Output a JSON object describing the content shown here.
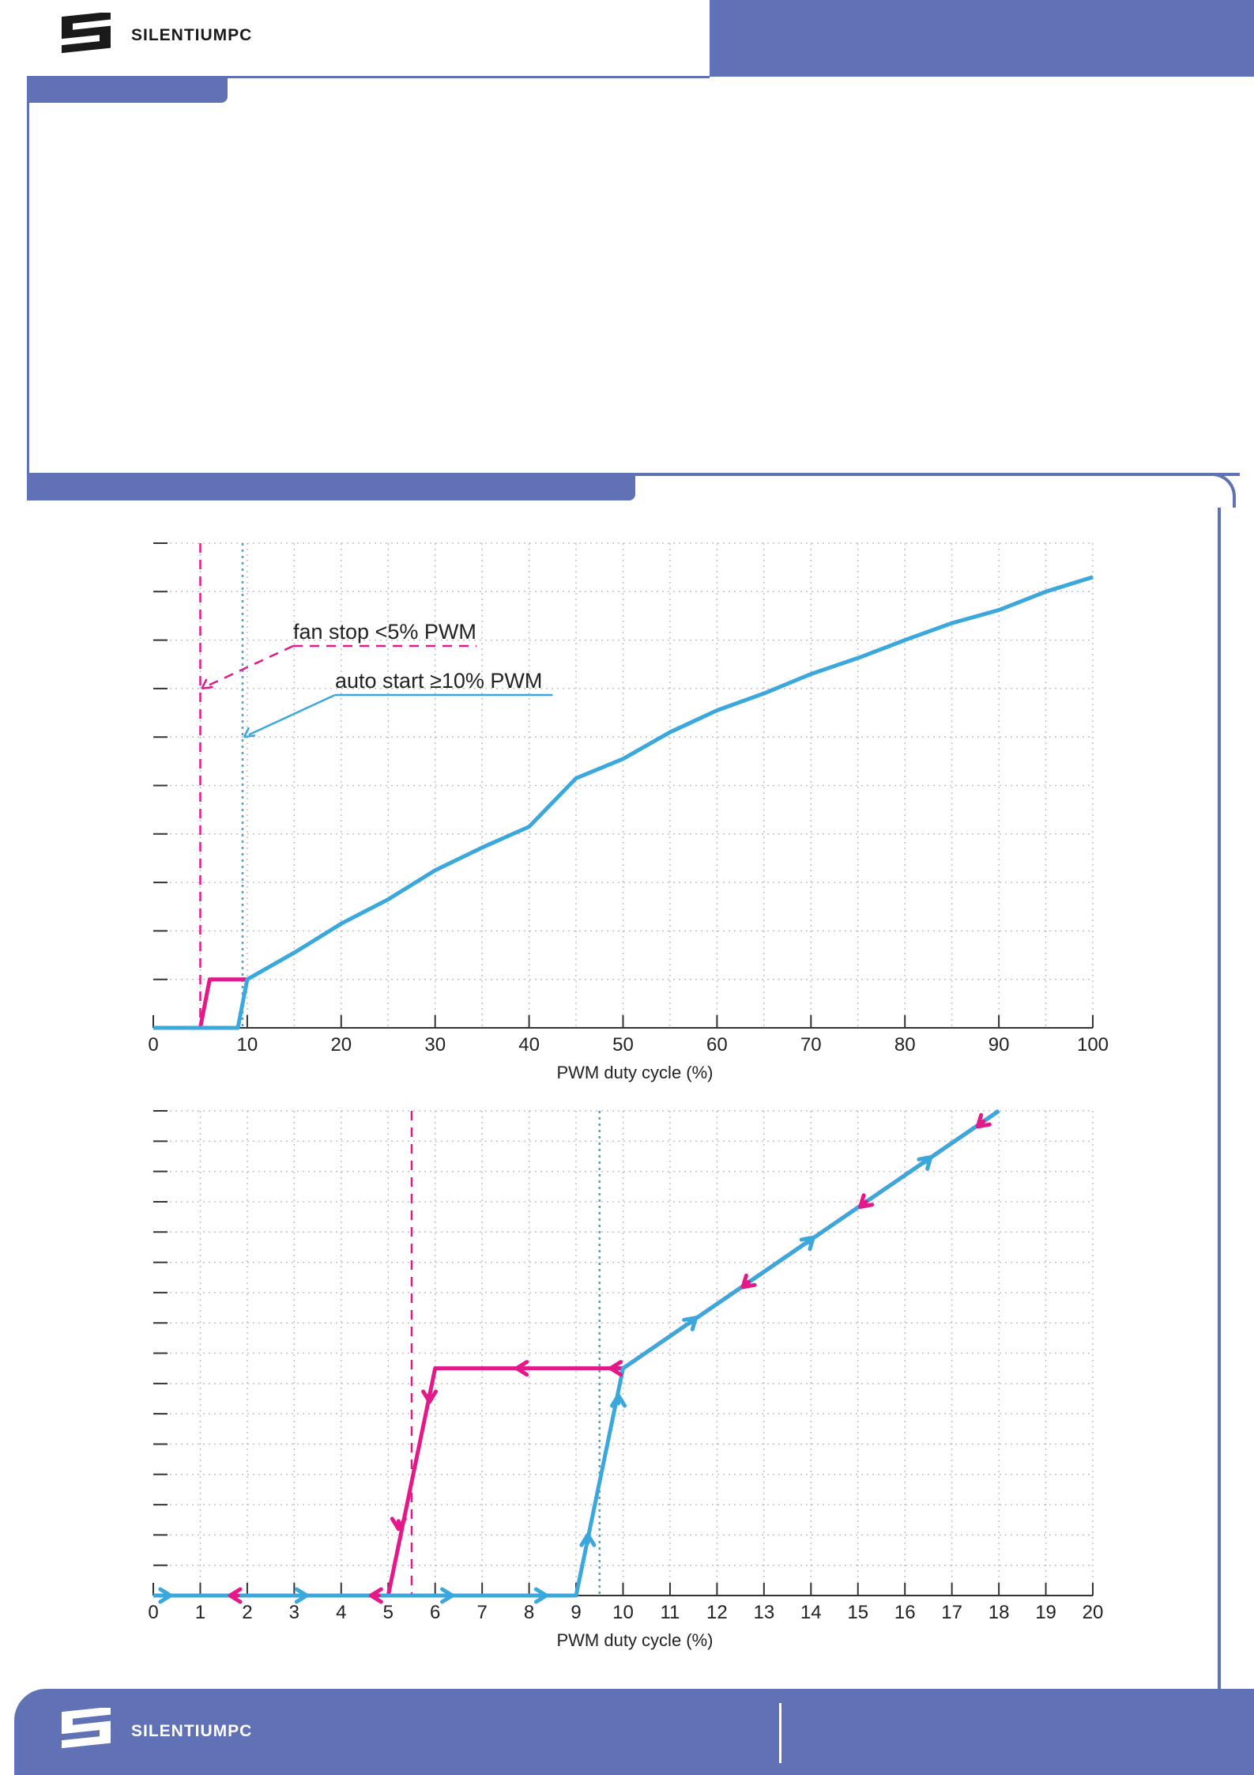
{
  "brand": {
    "name": "SILENTIUMPC",
    "primary_color": "#6171b5",
    "logo_dark": "#1a1a1a",
    "logo_light": "#ffffff"
  },
  "colors": {
    "pink": "#e3198a",
    "blue": "#3aa8dc",
    "grid": "#c2c2c2",
    "axis": "#333333"
  },
  "chart_data": [
    {
      "type": "line",
      "xlabel": "PWM duty cycle (%)",
      "ylabel": "",
      "xlim": [
        0,
        100
      ],
      "ylim": [
        0,
        100
      ],
      "xticks": [
        0,
        10,
        20,
        30,
        40,
        50,
        60,
        70,
        80,
        90,
        100
      ],
      "yticks": [
        0,
        10,
        20,
        30,
        40,
        50,
        60,
        70,
        80,
        90,
        100
      ],
      "vgrid": [
        5,
        10,
        15,
        20,
        25,
        30,
        35,
        40,
        45,
        50,
        55,
        60,
        65,
        70,
        75,
        80,
        85,
        90,
        95,
        100
      ],
      "grid": true,
      "series": [
        {
          "color": "pink",
          "x": [
            5,
            6,
            10
          ],
          "y": [
            0,
            10,
            10
          ]
        },
        {
          "color": "blue",
          "x": [
            0,
            9,
            10,
            15,
            20,
            25,
            30,
            35,
            40,
            45,
            50,
            55,
            60,
            65,
            70,
            75,
            80,
            85,
            90,
            95,
            100
          ],
          "y": [
            0,
            0,
            10,
            15.5,
            21.5,
            26.5,
            32.5,
            37.2,
            41.5,
            51.5,
            55.5,
            61,
            65.5,
            69,
            73,
            76.3,
            80,
            83.5,
            86.2,
            90,
            93
          ]
        }
      ],
      "markers": [
        {
          "x": 5,
          "color": "pink",
          "style": "dashed"
        },
        {
          "x": 9.5,
          "color": "blue",
          "style": "dotted"
        }
      ],
      "annotations": [
        {
          "text": "fan stop <5% PWM",
          "color": "pink",
          "points_to": [
            5,
            70
          ]
        },
        {
          "text": "auto start ≥10% PWM",
          "color": "blue",
          "points_to": [
            9.5,
            60
          ]
        }
      ]
    },
    {
      "type": "line",
      "xlabel": "PWM duty cycle (%)",
      "ylabel": "",
      "xlim": [
        0,
        20
      ],
      "ylim": [
        0,
        16
      ],
      "xticks": [
        0,
        1,
        2,
        3,
        4,
        5,
        6,
        7,
        8,
        9,
        10,
        11,
        12,
        13,
        14,
        15,
        16,
        17,
        18,
        19,
        20
      ],
      "yticks": [
        0,
        1,
        2,
        3,
        4,
        5,
        6,
        7,
        8,
        9,
        10,
        11,
        12,
        13,
        14,
        15,
        16
      ],
      "vgrid": [
        1,
        2,
        3,
        4,
        5,
        6,
        7,
        8,
        9,
        10,
        11,
        12,
        13,
        14,
        15,
        16,
        17,
        18,
        19,
        20
      ],
      "grid": true,
      "series": [
        {
          "color": "pink",
          "x": [
            5,
            6,
            10,
            18
          ],
          "y": [
            0,
            7.5,
            7.5,
            16
          ]
        },
        {
          "color": "blue",
          "x": [
            0,
            9,
            10,
            18
          ],
          "y": [
            0,
            0,
            7.5,
            16
          ]
        }
      ],
      "markers": [
        {
          "x": 5.5,
          "color": "pink",
          "style": "dashed"
        },
        {
          "x": 9.5,
          "color": "blue",
          "style": "dotted"
        }
      ],
      "arrows": [
        {
          "color": "blue",
          "x": 0.3,
          "y": 0,
          "dir": "right"
        },
        {
          "color": "pink",
          "x": 1.7,
          "y": 0,
          "dir": "left"
        },
        {
          "color": "blue",
          "x": 3.2,
          "y": 0,
          "dir": "right"
        },
        {
          "color": "pink",
          "x": 4.7,
          "y": 0,
          "dir": "left"
        },
        {
          "color": "blue",
          "x": 6.3,
          "y": 0,
          "dir": "right"
        },
        {
          "color": "blue",
          "x": 8.3,
          "y": 0,
          "dir": "right"
        },
        {
          "color": "pink",
          "x": 5.22,
          "y": 2.3,
          "dir": "down"
        },
        {
          "color": "pink",
          "x": 5.88,
          "y": 6.5,
          "dir": "down"
        },
        {
          "color": "blue",
          "x": 9.25,
          "y": 1.9,
          "dir": "up"
        },
        {
          "color": "blue",
          "x": 9.9,
          "y": 6.5,
          "dir": "up"
        },
        {
          "color": "pink",
          "x": 7.8,
          "y": 7.5,
          "dir": "left"
        },
        {
          "color": "pink",
          "x": 9.8,
          "y": 7.5,
          "dir": "left"
        },
        {
          "color": "blue",
          "x": 11.5,
          "y": 9.1,
          "dir": "upright"
        },
        {
          "color": "pink",
          "x": 12.6,
          "y": 10.25,
          "dir": "downleft"
        },
        {
          "color": "blue",
          "x": 14.0,
          "y": 11.75,
          "dir": "upright"
        },
        {
          "color": "pink",
          "x": 15.1,
          "y": 12.9,
          "dir": "downleft"
        },
        {
          "color": "blue",
          "x": 16.5,
          "y": 14.4,
          "dir": "upright"
        },
        {
          "color": "pink",
          "x": 17.6,
          "y": 15.55,
          "dir": "downleft"
        }
      ]
    }
  ]
}
